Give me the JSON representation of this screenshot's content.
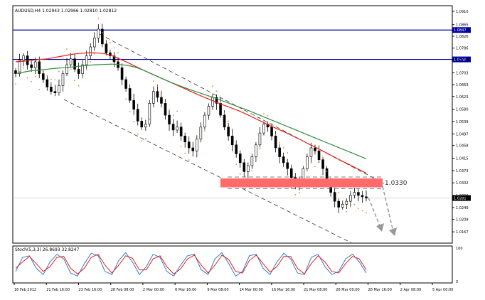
{
  "chart_data": [
    {
      "type": "candlestick",
      "symbol_line": "AUDUSD,H4  1.02943 1.02966 1.02810 1.02812",
      "y_range": [
        1.0129,
        1.0929
      ],
      "y_ticks": [
        "1.0910",
        "1.0865",
        "1.0826",
        "1.0786",
        "1.0748",
        "1.0703",
        "1.0663",
        "1.0623",
        "1.0580",
        "1.0539",
        "1.0497",
        "1.0458",
        "1.0415",
        "1.0373",
        "1.0332",
        "1.0290",
        "1.0249",
        "1.0209",
        "1.0167"
      ],
      "x_ticks": [
        "16 Feb 2012",
        "21 Feb 16:00",
        "23 Feb 16:00",
        "28 Feb 08:00",
        "2 Mar 00:00",
        "6 Mar 16:00",
        "9 Mar 08:00",
        "14 Mar 00:00",
        "16 Mar 16:00",
        "21 Mar 08:00",
        "26 Mar 00:00",
        "28 Mar 16:00",
        "2 Apr 08:00",
        "5 Apr 00:00"
      ],
      "close_series": [
        1.07,
        1.0745,
        1.076,
        1.073,
        1.072,
        1.074,
        1.07,
        1.068,
        1.0655,
        1.064,
        1.0635,
        1.066,
        1.07,
        1.073,
        1.075,
        1.0715,
        1.07,
        1.073,
        1.076,
        1.079,
        1.082,
        1.085,
        1.08,
        1.077,
        1.076,
        1.074,
        1.072,
        1.068,
        1.065,
        1.061,
        1.058,
        1.054,
        1.052,
        1.053,
        1.06,
        1.064,
        1.062,
        1.06,
        1.056,
        1.053,
        1.051,
        1.052,
        1.049,
        1.047,
        1.045,
        1.044,
        1.048,
        1.052,
        1.056,
        1.059,
        1.062,
        1.06,
        1.056,
        1.052,
        1.049,
        1.046,
        1.043,
        1.04,
        1.037,
        1.039,
        1.042,
        1.046,
        1.05,
        1.053,
        1.052,
        1.049,
        1.045,
        1.042,
        1.04,
        1.038,
        1.035,
        1.033,
        1.034,
        1.038,
        1.042,
        1.045,
        1.044,
        1.041,
        1.038,
        1.033,
        1.03,
        1.027,
        1.025,
        1.026,
        1.027,
        1.029,
        1.03,
        1.029,
        1.0285,
        1.0281
      ],
      "horizontal_lines": [
        {
          "value": 1.0847,
          "label": "1.0847",
          "color": "#0000a0"
        },
        {
          "value": 1.0748,
          "label": "1.0748",
          "color": "#0000a0"
        }
      ],
      "current_price": {
        "value": 1.0281,
        "label": "1.0281"
      },
      "resistance_zone": {
        "from": 1.0317,
        "to": 1.0347,
        "color": "#ff6b6b"
      },
      "annotation": {
        "text": "1.0330",
        "value": 1.033
      },
      "series": [
        {
          "name": "",
          "color": "#e8211a",
          "values": [
            1.074,
            1.0742,
            1.0745,
            1.0748,
            1.075,
            1.0755,
            1.076,
            1.0765,
            1.0768,
            1.077,
            1.077,
            1.0768,
            1.0762,
            1.075,
            1.0738,
            1.0725,
            1.0712,
            1.07,
            1.0688,
            1.0676,
            1.0664,
            1.0652,
            1.064,
            1.0628,
            1.0617,
            1.0606,
            1.0595,
            1.0585,
            1.0575,
            1.0563,
            1.055,
            1.0537,
            1.0524,
            1.0512,
            1.05,
            1.0487,
            1.0474,
            1.046,
            1.0447,
            1.0433,
            1.0419,
            1.0405,
            1.0392,
            1.0378,
            1.0365
          ]
        },
        {
          "name": "",
          "color": "#2e8b3c",
          "values": [
            1.07,
            1.0705,
            1.071,
            1.0712,
            1.0715,
            1.0718,
            1.072,
            1.0722,
            1.0725,
            1.0728,
            1.073,
            1.0731,
            1.0732,
            1.0731,
            1.0728,
            1.0722,
            1.0712,
            1.07,
            1.0688,
            1.0676,
            1.0665,
            1.0655,
            1.0645,
            1.0636,
            1.0627,
            1.0618,
            1.0608,
            1.0598,
            1.0588,
            1.0578,
            1.0567,
            1.0556,
            1.0545,
            1.0534,
            1.0523,
            1.0512,
            1.0501,
            1.049,
            1.0479,
            1.0468,
            1.0457,
            1.0446,
            1.0435,
            1.0424,
            1.0413
          ]
        }
      ]
    },
    {
      "type": "line",
      "title": "Stoch(5,3,3) 26.8693 32.8247",
      "y_range": [
        0,
        100
      ],
      "y_ticks": [
        "100",
        "0"
      ],
      "series": [
        {
          "name": "",
          "color": "#2f7fd0",
          "values": [
            30,
            75,
            80,
            40,
            20,
            60,
            85,
            70,
            25,
            15,
            55,
            88,
            80,
            30,
            20,
            65,
            90,
            60,
            20,
            45,
            85,
            75,
            30,
            15,
            50,
            80,
            85,
            35,
            20,
            70,
            90,
            55,
            15,
            30,
            80,
            85,
            40,
            20,
            60,
            88,
            70,
            25,
            20,
            75,
            85,
            45,
            20,
            30,
            70,
            85,
            60,
            25
          ]
        },
        {
          "name": "",
          "color": "#e8211a",
          "values": [
            40,
            60,
            78,
            55,
            30,
            45,
            75,
            78,
            40,
            22,
            40,
            75,
            85,
            50,
            25,
            50,
            80,
            72,
            35,
            35,
            70,
            80,
            45,
            22,
            38,
            70,
            82,
            50,
            25,
            50,
            82,
            68,
            30,
            25,
            65,
            82,
            55,
            28,
            45,
            78,
            78,
            40,
            22,
            55,
            80,
            60,
            30,
            25,
            55,
            78,
            70,
            35
          ]
        }
      ]
    }
  ]
}
